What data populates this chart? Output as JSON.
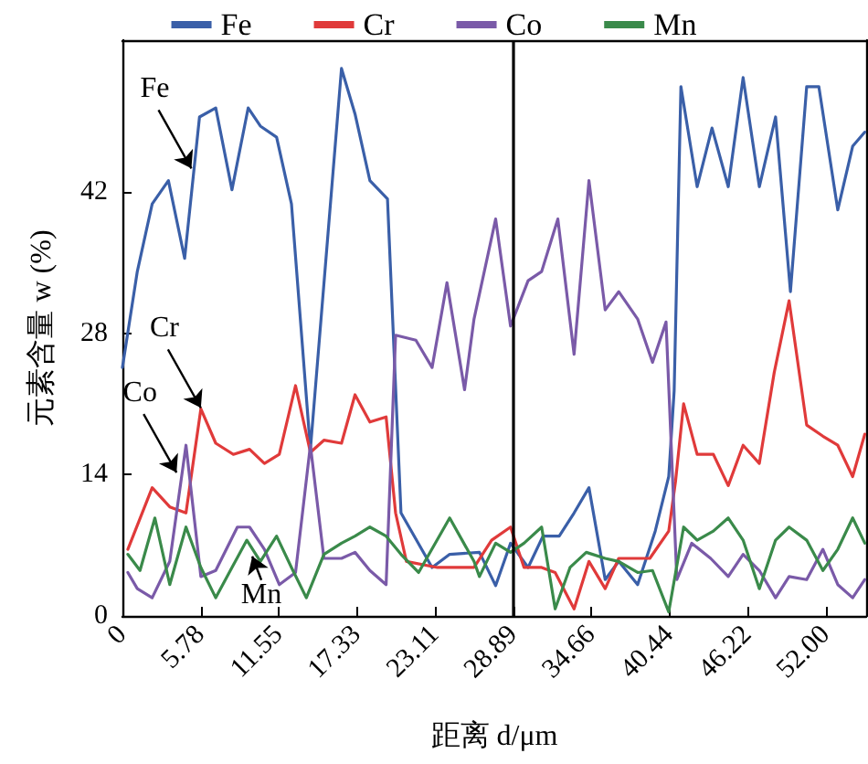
{
  "chart_data": {
    "type": "line",
    "xlabel": "距离 d/μm",
    "ylabel": "元素含量 w (%)",
    "xlim": [
      0,
      55
    ],
    "xticks": [
      0,
      5.78,
      11.55,
      17.33,
      23.11,
      28.89,
      34.66,
      40.44,
      46.22,
      {
        "value": 52,
        "label": "52.00"
      }
    ],
    "ylim": [
      0,
      57
    ],
    "yticks": [
      0,
      14,
      28,
      42
    ],
    "grid": false,
    "legend": "top",
    "marker": "none",
    "line_style": "solid",
    "ref_lines": [
      {
        "axis": "x",
        "value": 28.89,
        "color": "#000000"
      }
    ],
    "annotations": [
      {
        "text": "Fe",
        "x": 5.1,
        "y": 44.3
      },
      {
        "text": "Cr",
        "x": 5.8,
        "y": 20.6
      },
      {
        "text": "Co",
        "x": 4.0,
        "y": 14.2
      },
      {
        "text": "Mn",
        "x": 9.6,
        "y": 5.9
      }
    ],
    "series": [
      {
        "name": "Fe",
        "color": "#3a5fa8",
        "x": [
          0,
          1.1,
          2.2,
          3.4,
          4.6,
          5.7,
          6.9,
          8.1,
          9.3,
          10.2,
          11.4,
          12.5,
          13.9,
          16.2,
          17.2,
          18.3,
          19.6,
          20.6,
          22.9,
          24.2,
          26.4,
          27.6,
          28.7,
          30.0,
          31.1,
          32.3,
          33.4,
          34.5,
          35.7,
          36.7,
          38.1,
          39.4,
          40.4,
          40.8,
          41.3,
          42.5,
          43.6,
          44.8,
          45.9,
          47.1,
          48.3,
          49.4,
          50.6,
          51.5,
          52.9,
          54.0,
          54.9
        ],
        "values": [
          24.6,
          34.1,
          40.8,
          43.1,
          35.4,
          49.4,
          50.3,
          42.2,
          50.3,
          48.5,
          47.4,
          40.8,
          16.5,
          54.2,
          49.7,
          43.1,
          41.3,
          10.2,
          4.8,
          6.1,
          6.3,
          3.0,
          7.2,
          4.8,
          7.9,
          7.9,
          10.2,
          12.7,
          3.6,
          5.4,
          3.1,
          8.4,
          13.8,
          22.3,
          52.4,
          42.5,
          48.3,
          42.5,
          53.3,
          42.5,
          49.4,
          32.1,
          52.4,
          52.4,
          40.2,
          46.5,
          47.9
        ]
      },
      {
        "name": "Cr",
        "color": "#e03a3a",
        "x": [
          0.4,
          2.2,
          3.5,
          4.7,
          5.8,
          6.9,
          8.2,
          9.4,
          10.5,
          11.6,
          12.8,
          13.9,
          14.9,
          16.2,
          17.2,
          18.3,
          19.5,
          20.2,
          21.0,
          23.3,
          26.0,
          27.3,
          28.7,
          29.7,
          31.0,
          32.0,
          33.4,
          34.5,
          35.7,
          36.7,
          37.8,
          39.0,
          40.4,
          40.9,
          41.5,
          42.5,
          43.7,
          44.8,
          45.9,
          47.1,
          48.2,
          49.3,
          50.6,
          51.8,
          52.9,
          54.0,
          54.9
        ],
        "values": [
          6.6,
          12.7,
          10.8,
          10.2,
          20.5,
          17.1,
          16.0,
          16.5,
          15.1,
          16.0,
          22.8,
          16.2,
          17.4,
          17.1,
          21.9,
          19.2,
          19.7,
          10.2,
          5.4,
          4.8,
          4.8,
          7.5,
          8.8,
          4.8,
          4.8,
          4.3,
          0.7,
          5.4,
          2.7,
          5.7,
          5.7,
          5.7,
          8.4,
          13.3,
          21.0,
          16.0,
          16.0,
          12.9,
          16.9,
          15.1,
          24.1,
          31.2,
          18.9,
          17.8,
          16.9,
          13.8,
          18.0
        ]
      },
      {
        "name": "Co",
        "color": "#7a5aa8",
        "x": [
          0.4,
          1.1,
          2.2,
          3.5,
          4.7,
          5.8,
          6.9,
          8.5,
          9.4,
          10.5,
          11.6,
          12.8,
          13.9,
          14.9,
          16.2,
          17.2,
          18.3,
          19.5,
          20.2,
          21.7,
          22.9,
          24.0,
          25.3,
          26.0,
          27.6,
          28.7,
          30.0,
          31.0,
          32.2,
          33.4,
          34.5,
          35.7,
          36.7,
          38.1,
          39.2,
          40.2,
          41.0,
          42.1,
          43.5,
          44.8,
          45.9,
          47.1,
          48.3,
          49.3,
          50.6,
          51.8,
          52.9,
          54.0,
          54.9
        ],
        "values": [
          4.3,
          2.7,
          1.8,
          5.4,
          16.9,
          3.9,
          4.5,
          8.8,
          8.8,
          6.6,
          3.1,
          4.3,
          16.9,
          5.7,
          5.7,
          6.3,
          4.5,
          3.1,
          27.8,
          27.3,
          24.6,
          33.0,
          22.4,
          29.4,
          39.3,
          28.7,
          33.2,
          34.1,
          39.3,
          25.9,
          43.1,
          30.3,
          32.1,
          29.4,
          25.1,
          29.1,
          3.6,
          7.2,
          5.7,
          3.9,
          6.1,
          4.5,
          1.8,
          3.9,
          3.6,
          6.6,
          3.1,
          1.8,
          3.6
        ]
      },
      {
        "name": "Mn",
        "color": "#3a8a4a",
        "x": [
          0.4,
          1.3,
          2.4,
          3.5,
          4.7,
          5.8,
          6.9,
          8.1,
          9.2,
          10.2,
          11.4,
          12.5,
          13.6,
          14.9,
          16.2,
          17.2,
          18.3,
          19.5,
          20.6,
          21.9,
          24.2,
          26.0,
          26.4,
          27.6,
          28.7,
          29.7,
          31.0,
          32.0,
          33.1,
          34.3,
          35.7,
          36.7,
          38.1,
          39.2,
          40.4,
          41.5,
          42.5,
          43.7,
          44.8,
          45.9,
          47.1,
          48.3,
          49.3,
          50.6,
          51.8,
          52.9,
          54.0,
          54.9
        ],
        "values": [
          6.1,
          4.5,
          9.7,
          3.1,
          8.8,
          4.8,
          1.8,
          4.8,
          7.5,
          5.4,
          7.9,
          4.8,
          1.8,
          6.1,
          7.2,
          7.9,
          8.8,
          7.9,
          6.1,
          4.3,
          9.7,
          5.4,
          3.9,
          7.2,
          6.3,
          7.2,
          8.8,
          0.7,
          4.8,
          6.3,
          5.7,
          5.4,
          4.3,
          4.5,
          0.4,
          8.8,
          7.5,
          8.4,
          9.7,
          7.5,
          2.7,
          7.5,
          8.8,
          7.5,
          4.5,
          6.6,
          9.7,
          7.2
        ]
      }
    ]
  }
}
